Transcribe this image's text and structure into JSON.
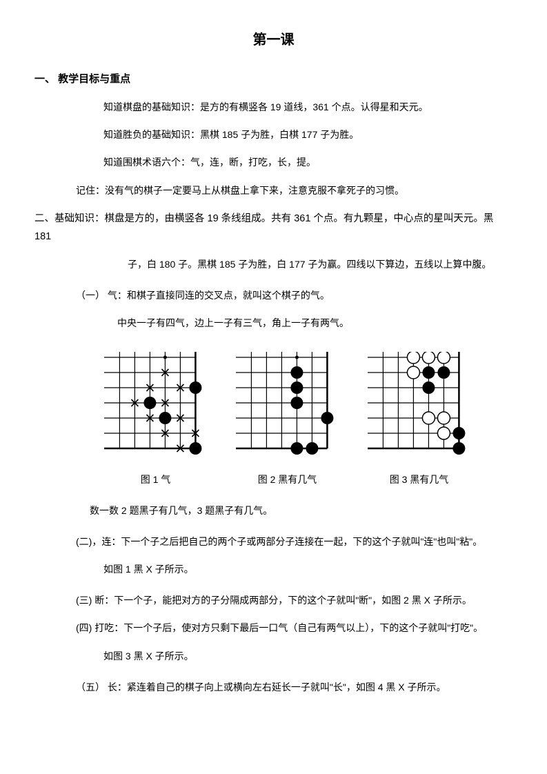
{
  "title": "第一课",
  "section1": {
    "heading": "一、 教学目标与重点",
    "lines": [
      "知道棋盘的基础知识：是方的有横竖各 19 道线，361 个点。认得星和天元。",
      "知道胜负的基础知识：黑棋 185 子为胜，白棋 177 子为胜。",
      "知道围棋术语六个：气，连，断，打吃，长，提。"
    ],
    "note": "记住：没有气的棋子一定要马上从棋盘上拿下来，注意克服不拿死子的习惯。"
  },
  "section2": {
    "heading": "二、基础知识：棋盘是方的，由横竖各 19 条线组成。共有 361 个点。有九颗星，中心点的星叫天元。黑 181",
    "cont": "子，白 180 子。黑棋 185 子为胜，白 177 子为赢。四线以下算边，五线以上算中腹。",
    "item1_head": "（一） 气：和棋子直接同连的交叉点，就叫这个棋子的气。",
    "item1_line": "中央一子有四气，边上一子有三气，角上一子有两气。",
    "captions": [
      "图 1 气",
      "图 2 黑有几气",
      "图 3 黑有几气"
    ],
    "count_line": "数一数 2 题黑子有几气，3 题黑子有几气。",
    "item2": "(二)，连：下一个子之后把自己的两个子或两部分子连接在一起，下的这个子就叫\"连\"也叫\"粘\"。",
    "item2_sub": "如图 1 黑 X 子所示。",
    "item3": "(三) 断：下一个子，能把对方的子分隔成两部分，下的这个子就叫\"断\"，如图 2 黑 X 子所示。",
    "item4": "(四) 打吃：下一个子后，使对方只剩下最后一口气（自己有两气以上），下的这个子就叫\"打吃\"。",
    "item4_sub": "如图 3 黑 X 子所示。",
    "item5": "（五） 长：紧连着自己的棋子向上或横向左右延长一子就叫\"长\"，如图 4 黑 X 子所示。"
  },
  "diagrams": {
    "grid_color": "#000000",
    "board_size": 150,
    "line_width": 1.2,
    "stone_radius": 9,
    "d1": {
      "cols": 6,
      "rows": 7,
      "right_edge": true,
      "bottom_edge": true,
      "xmarks": [
        [
          3,
          1
        ],
        [
          2,
          2
        ],
        [
          4,
          2
        ],
        [
          1,
          3
        ],
        [
          3,
          3
        ],
        [
          2,
          4
        ],
        [
          4,
          4
        ],
        [
          3,
          5
        ],
        [
          4,
          6
        ],
        [
          5,
          5
        ]
      ],
      "black": [
        [
          2,
          3
        ],
        [
          3,
          4
        ],
        [
          5,
          2
        ],
        [
          5,
          6
        ]
      ],
      "dots": [
        [
          3,
          0
        ]
      ]
    },
    "d2": {
      "cols": 6,
      "rows": 7,
      "right_edge": true,
      "bottom_edge": true,
      "black": [
        [
          3,
          1
        ],
        [
          3,
          2
        ],
        [
          3,
          3
        ],
        [
          3,
          6
        ],
        [
          4,
          6
        ],
        [
          5,
          4
        ]
      ],
      "dots": [
        [
          3,
          0
        ]
      ]
    },
    "d3": {
      "cols": 6,
      "rows": 7,
      "right_edge": true,
      "bottom_edge": true,
      "black": [
        [
          3,
          1
        ],
        [
          3,
          2
        ],
        [
          4,
          1
        ],
        [
          5,
          5
        ],
        [
          5,
          6
        ]
      ],
      "white": [
        [
          2,
          0
        ],
        [
          3,
          0
        ],
        [
          4,
          0
        ],
        [
          2,
          1
        ],
        [
          3,
          4
        ],
        [
          4,
          4
        ],
        [
          4,
          5
        ]
      ],
      "dots": []
    }
  },
  "colors": {
    "black": "#000000",
    "white": "#ffffff",
    "bg": "#ffffff"
  }
}
